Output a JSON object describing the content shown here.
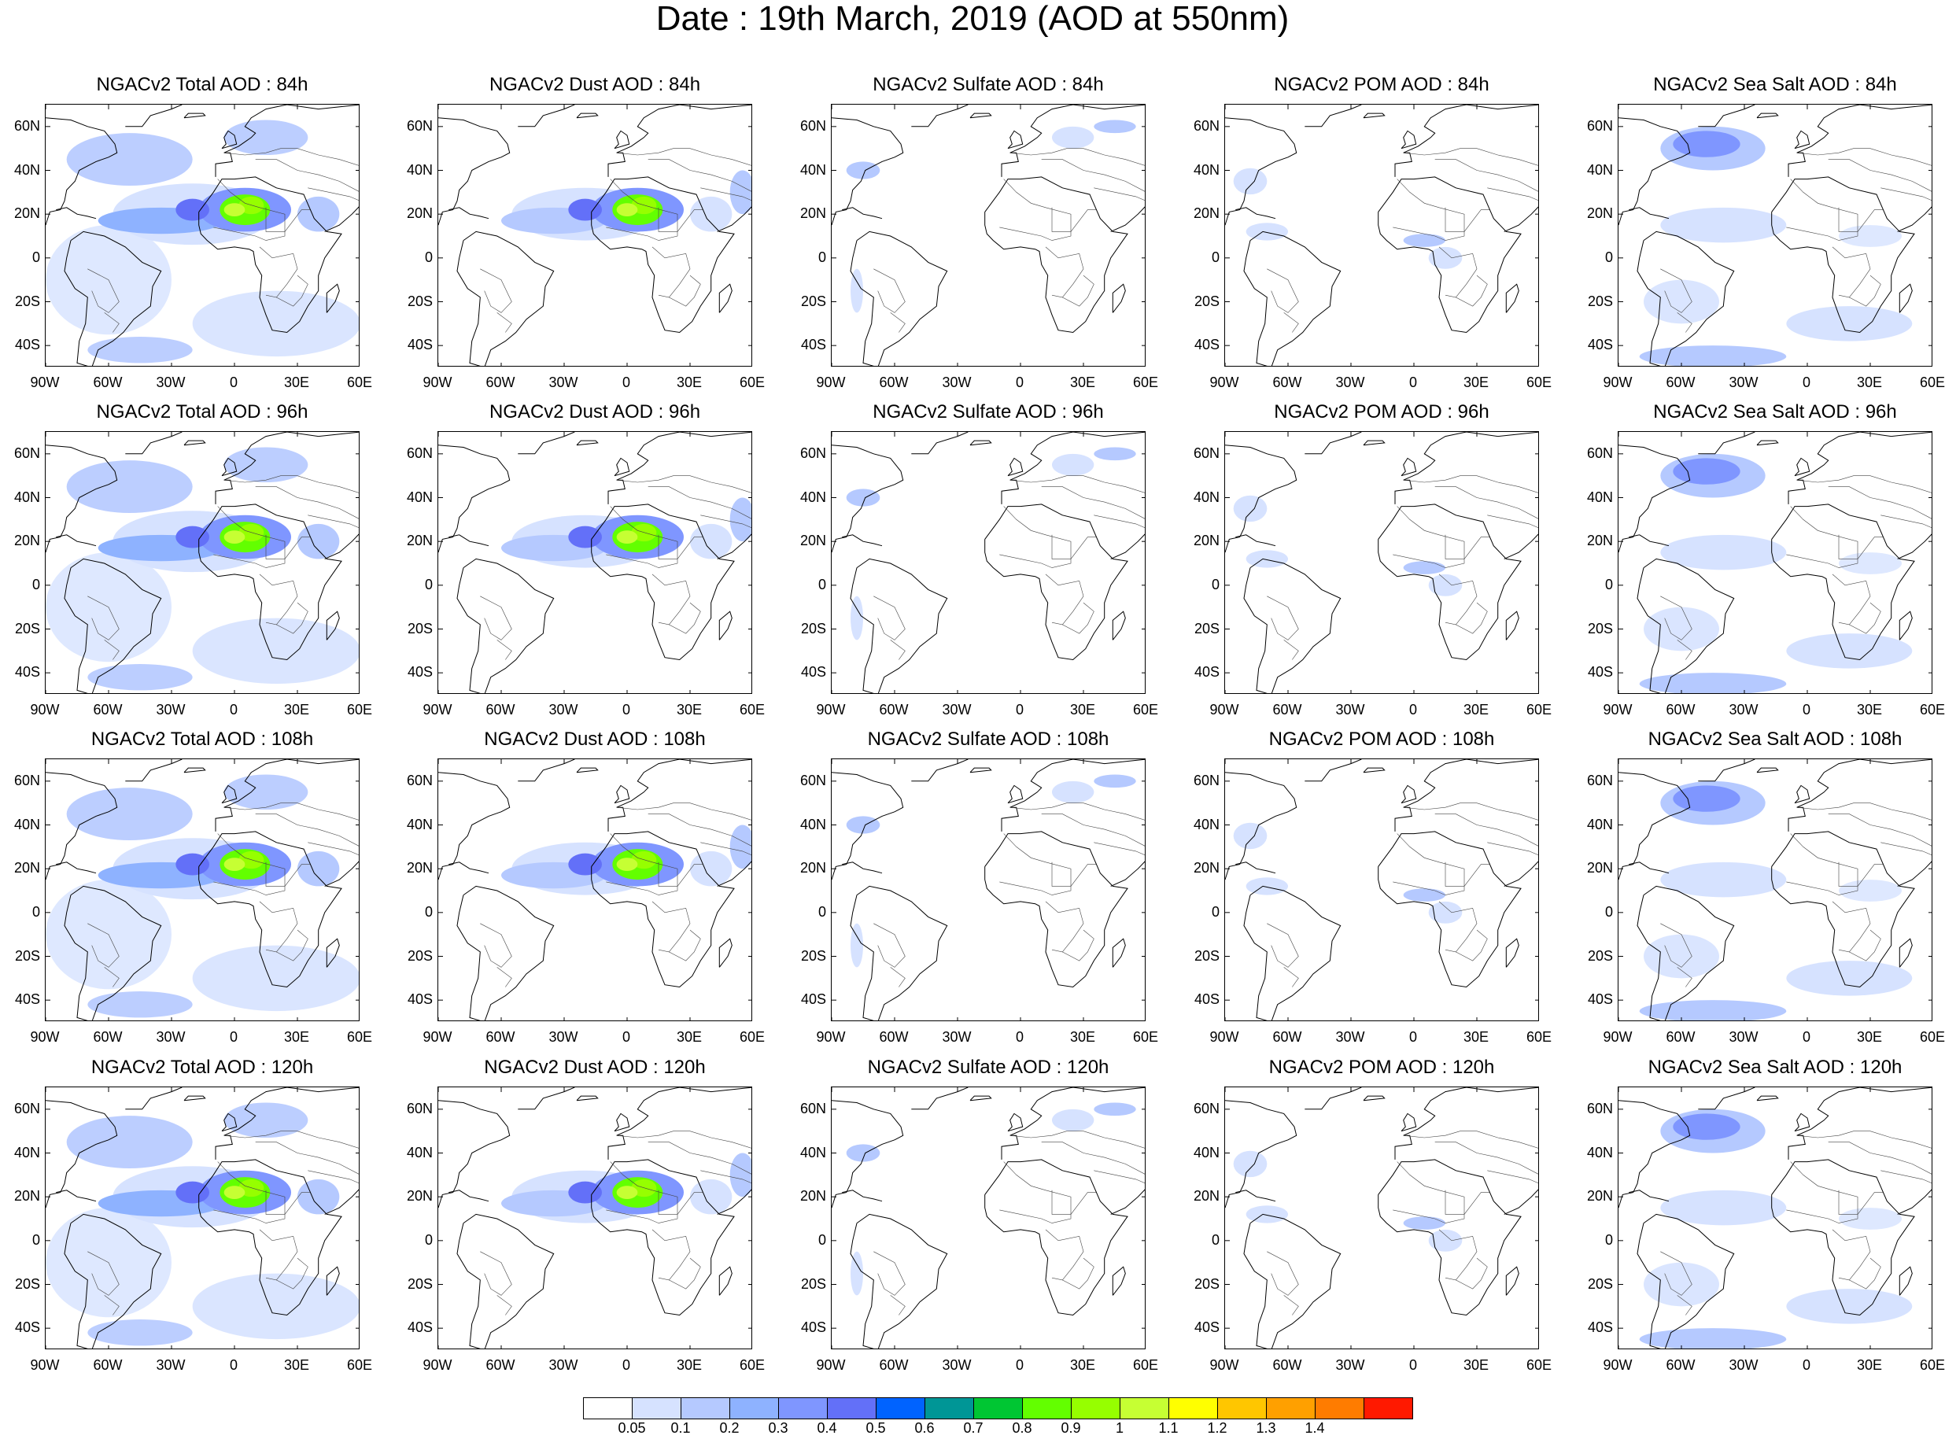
{
  "figure": {
    "title": "Date : 19th March, 2019 (AOD at 550nm)"
  },
  "map_extent": {
    "lon": [
      -90,
      60
    ],
    "lat": [
      -50,
      70
    ]
  },
  "axis_ticks": {
    "lat": [
      {
        "value": 60,
        "label": "60N"
      },
      {
        "value": 40,
        "label": "40N"
      },
      {
        "value": 20,
        "label": "20N"
      },
      {
        "value": 0,
        "label": "0"
      },
      {
        "value": -20,
        "label": "20S"
      },
      {
        "value": -40,
        "label": "40S"
      }
    ],
    "lon": [
      {
        "value": -90,
        "label": "90W"
      },
      {
        "value": -60,
        "label": "60W"
      },
      {
        "value": -30,
        "label": "30W"
      },
      {
        "value": 0,
        "label": "0"
      },
      {
        "value": 30,
        "label": "30E"
      },
      {
        "value": 60,
        "label": "60E"
      }
    ]
  },
  "rows": [
    {
      "forecast_hour": "84h",
      "panels": [
        {
          "title": "NGACv2 Total AOD : 84h",
          "species": "total"
        },
        {
          "title": "NGACv2 Dust AOD : 84h",
          "species": "dust"
        },
        {
          "title": "NGACv2 Sulfate AOD : 84h",
          "species": "sulfate"
        },
        {
          "title": "NGACv2 POM AOD : 84h",
          "species": "pom"
        },
        {
          "title": "NGACv2 Sea Salt AOD : 84h",
          "species": "seasalt"
        }
      ]
    },
    {
      "forecast_hour": "96h",
      "panels": [
        {
          "title": "NGACv2 Total AOD : 96h",
          "species": "total"
        },
        {
          "title": "NGACv2 Dust AOD : 96h",
          "species": "dust"
        },
        {
          "title": "NGACv2 Sulfate AOD : 96h",
          "species": "sulfate"
        },
        {
          "title": "NGACv2 POM AOD : 96h",
          "species": "pom"
        },
        {
          "title": "NGACv2 Sea Salt AOD : 96h",
          "species": "seasalt"
        }
      ]
    },
    {
      "forecast_hour": "108h",
      "panels": [
        {
          "title": "NGACv2 Total AOD : 108h",
          "species": "total"
        },
        {
          "title": "NGACv2 Dust AOD : 108h",
          "species": "dust"
        },
        {
          "title": "NGACv2 Sulfate AOD : 108h",
          "species": "sulfate"
        },
        {
          "title": "NGACv2 POM AOD : 108h",
          "species": "pom"
        },
        {
          "title": "NGACv2 Sea Salt AOD : 108h",
          "species": "seasalt"
        }
      ]
    },
    {
      "forecast_hour": "120h",
      "panels": [
        {
          "title": "NGACv2 Total AOD : 120h",
          "species": "total"
        },
        {
          "title": "NGACv2 Dust AOD : 120h",
          "species": "dust"
        },
        {
          "title": "NGACv2 Sulfate AOD : 120h",
          "species": "sulfate"
        },
        {
          "title": "NGACv2 POM AOD : 120h",
          "species": "pom"
        },
        {
          "title": "NGACv2 Sea Salt  AOD : 120h",
          "species": "seasalt"
        }
      ]
    }
  ],
  "colorbar": {
    "levels": [
      "0.05",
      "0.1",
      "0.2",
      "0.3",
      "0.4",
      "0.5",
      "0.6",
      "0.7",
      "0.8",
      "0.9",
      "1",
      "1.1",
      "1.2",
      "1.3",
      "1.4"
    ],
    "colors": [
      "#ffffff",
      "#d6e2ff",
      "#b5c9ff",
      "#8eb2ff",
      "#7f96ff",
      "#6370f8",
      "#0063ff",
      "#009696",
      "#00c633",
      "#63ff00",
      "#96ff00",
      "#c6ff33",
      "#ffff00",
      "#ffc600",
      "#ffa000",
      "#ff7c00",
      "#ff1900"
    ]
  }
}
